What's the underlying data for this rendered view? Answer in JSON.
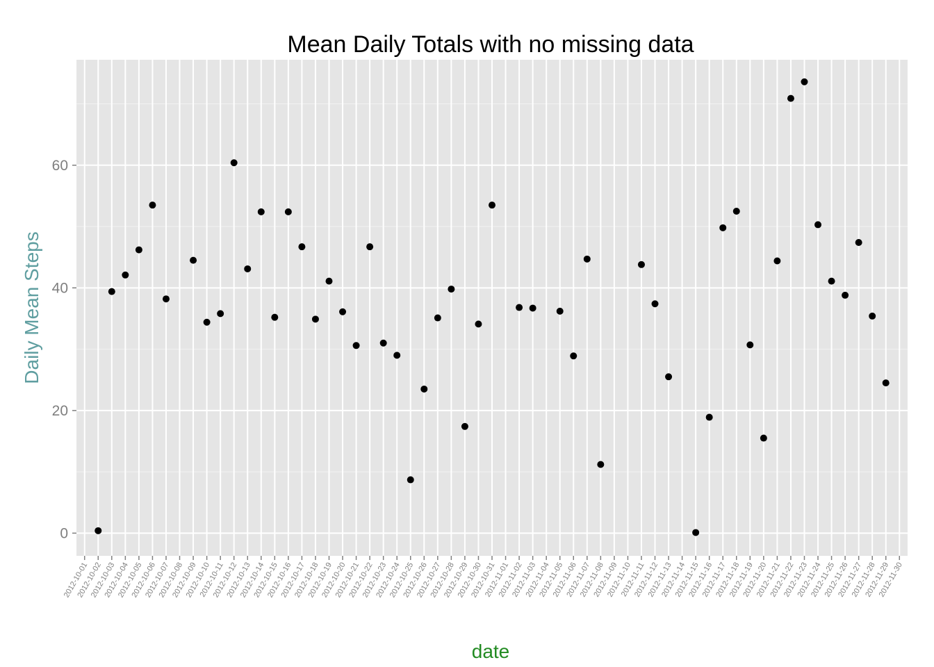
{
  "colors": {
    "panel": "#e5e5e5",
    "grid_major": "#ffffff",
    "grid_minor": "#f2f2f2",
    "point": "#000000",
    "ylabel": "#5f9ea0",
    "xlabel": "#228b22",
    "tick_text": "#7f7f7f"
  },
  "chart_data": {
    "type": "scatter",
    "title": "Mean Daily Totals with no missing data",
    "xlabel": "date",
    "ylabel": "Daily Mean Steps",
    "ylim": [
      -3.7,
      77.2
    ],
    "yticks": [
      0,
      20,
      40,
      60
    ],
    "grid": true,
    "legend": "none",
    "categories": [
      "2012-10-01",
      "2012-10-02",
      "2012-10-03",
      "2012-10-04",
      "2012-10-05",
      "2012-10-06",
      "2012-10-07",
      "2012-10-08",
      "2012-10-09",
      "2012-10-10",
      "2012-10-11",
      "2012-10-12",
      "2012-10-13",
      "2012-10-14",
      "2012-10-15",
      "2012-10-16",
      "2012-10-17",
      "2012-10-18",
      "2012-10-19",
      "2012-10-20",
      "2012-10-21",
      "2012-10-22",
      "2012-10-23",
      "2012-10-24",
      "2012-10-25",
      "2012-10-26",
      "2012-10-27",
      "2012-10-28",
      "2012-10-29",
      "2012-10-30",
      "2012-10-31",
      "2012-11-01",
      "2012-11-02",
      "2012-11-03",
      "2012-11-04",
      "2012-11-05",
      "2012-11-06",
      "2012-11-07",
      "2012-11-08",
      "2012-11-09",
      "2012-11-10",
      "2012-11-11",
      "2012-11-12",
      "2012-11-13",
      "2012-11-14",
      "2012-11-15",
      "2012-11-16",
      "2012-11-17",
      "2012-11-18",
      "2012-11-19",
      "2012-11-20",
      "2012-11-21",
      "2012-11-22",
      "2012-11-23",
      "2012-11-24",
      "2012-11-25",
      "2012-11-26",
      "2012-11-27",
      "2012-11-28",
      "2012-11-29",
      "2012-11-30"
    ],
    "points": [
      {
        "x": "2012-10-02",
        "y": 0.4
      },
      {
        "x": "2012-10-03",
        "y": 39.4
      },
      {
        "x": "2012-10-04",
        "y": 42.1
      },
      {
        "x": "2012-10-05",
        "y": 46.2
      },
      {
        "x": "2012-10-06",
        "y": 53.5
      },
      {
        "x": "2012-10-07",
        "y": 38.2
      },
      {
        "x": "2012-10-09",
        "y": 44.5
      },
      {
        "x": "2012-10-10",
        "y": 34.4
      },
      {
        "x": "2012-10-11",
        "y": 35.8
      },
      {
        "x": "2012-10-12",
        "y": 60.4
      },
      {
        "x": "2012-10-13",
        "y": 43.1
      },
      {
        "x": "2012-10-14",
        "y": 52.4
      },
      {
        "x": "2012-10-15",
        "y": 35.2
      },
      {
        "x": "2012-10-16",
        "y": 52.4
      },
      {
        "x": "2012-10-17",
        "y": 46.7
      },
      {
        "x": "2012-10-18",
        "y": 34.9
      },
      {
        "x": "2012-10-19",
        "y": 41.1
      },
      {
        "x": "2012-10-20",
        "y": 36.1
      },
      {
        "x": "2012-10-21",
        "y": 30.6
      },
      {
        "x": "2012-10-22",
        "y": 46.7
      },
      {
        "x": "2012-10-23",
        "y": 31.0
      },
      {
        "x": "2012-10-24",
        "y": 29.0
      },
      {
        "x": "2012-10-25",
        "y": 8.7
      },
      {
        "x": "2012-10-26",
        "y": 23.5
      },
      {
        "x": "2012-10-27",
        "y": 35.1
      },
      {
        "x": "2012-10-28",
        "y": 39.8
      },
      {
        "x": "2012-10-29",
        "y": 17.4
      },
      {
        "x": "2012-10-30",
        "y": 34.1
      },
      {
        "x": "2012-10-31",
        "y": 53.5
      },
      {
        "x": "2012-11-02",
        "y": 36.8
      },
      {
        "x": "2012-11-03",
        "y": 36.7
      },
      {
        "x": "2012-11-05",
        "y": 36.2
      },
      {
        "x": "2012-11-06",
        "y": 28.9
      },
      {
        "x": "2012-11-07",
        "y": 44.7
      },
      {
        "x": "2012-11-08",
        "y": 11.2
      },
      {
        "x": "2012-11-11",
        "y": 43.8
      },
      {
        "x": "2012-11-12",
        "y": 37.4
      },
      {
        "x": "2012-11-13",
        "y": 25.5
      },
      {
        "x": "2012-11-15",
        "y": 0.1
      },
      {
        "x": "2012-11-16",
        "y": 18.9
      },
      {
        "x": "2012-11-17",
        "y": 49.8
      },
      {
        "x": "2012-11-18",
        "y": 52.5
      },
      {
        "x": "2012-11-19",
        "y": 30.7
      },
      {
        "x": "2012-11-20",
        "y": 15.5
      },
      {
        "x": "2012-11-21",
        "y": 44.4
      },
      {
        "x": "2012-11-22",
        "y": 70.9
      },
      {
        "x": "2012-11-23",
        "y": 73.6
      },
      {
        "x": "2012-11-24",
        "y": 50.3
      },
      {
        "x": "2012-11-25",
        "y": 41.1
      },
      {
        "x": "2012-11-26",
        "y": 38.8
      },
      {
        "x": "2012-11-27",
        "y": 47.4
      },
      {
        "x": "2012-11-28",
        "y": 35.4
      },
      {
        "x": "2012-11-29",
        "y": 24.5
      }
    ]
  }
}
